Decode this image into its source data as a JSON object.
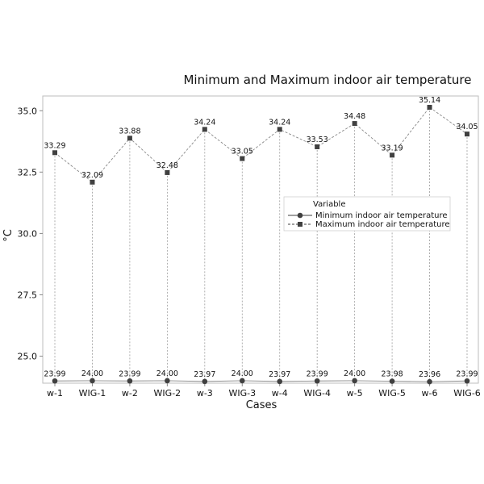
{
  "chart_data": {
    "type": "line",
    "title": "Minimum and  Maximum indoor air temperature",
    "xlabel": "Cases",
    "ylabel": "°C",
    "categories": [
      "w-1",
      "WIG-1",
      "w-2",
      "WIG-2",
      "w-3",
      "WIG-3",
      "w-4",
      "WIG-4",
      "w-5",
      "WIG-5",
      "w-6",
      "WIG-6"
    ],
    "ylim": [
      23.9,
      35.6
    ],
    "yticks": [
      25.0,
      27.5,
      30.0,
      32.5,
      35.0
    ],
    "ytick_labels": [
      "25.0",
      "27.5",
      "30.0",
      "32.5",
      "35.0"
    ],
    "grid": false,
    "legend": {
      "title": "Variable",
      "placement": "right"
    },
    "series": [
      {
        "name": "Minimum indoor air temperature",
        "marker": "circle",
        "line_style": "solid",
        "color": "#404040",
        "values": [
          23.99,
          24.0,
          23.99,
          24.0,
          23.97,
          24.0,
          23.97,
          23.99,
          24.0,
          23.98,
          23.96,
          23.99
        ],
        "labels": [
          "23.99",
          "24.00",
          "23.99",
          "24.00",
          "23.97",
          "24.00",
          "23.97",
          "23.99",
          "24.00",
          "23.98",
          "23.96",
          "23.99"
        ]
      },
      {
        "name": "Maximum indoor air temperature",
        "marker": "square",
        "line_style": "dashed",
        "color": "#404040",
        "values": [
          33.29,
          32.09,
          33.88,
          32.48,
          34.24,
          33.05,
          34.24,
          33.53,
          34.48,
          33.19,
          35.14,
          34.05
        ],
        "labels": [
          "33.29",
          "32.09",
          "33.88",
          "32.48",
          "34.24",
          "33.05",
          "34.24",
          "33.53",
          "34.48",
          "33.19",
          "35.14",
          "34.05"
        ]
      }
    ]
  }
}
